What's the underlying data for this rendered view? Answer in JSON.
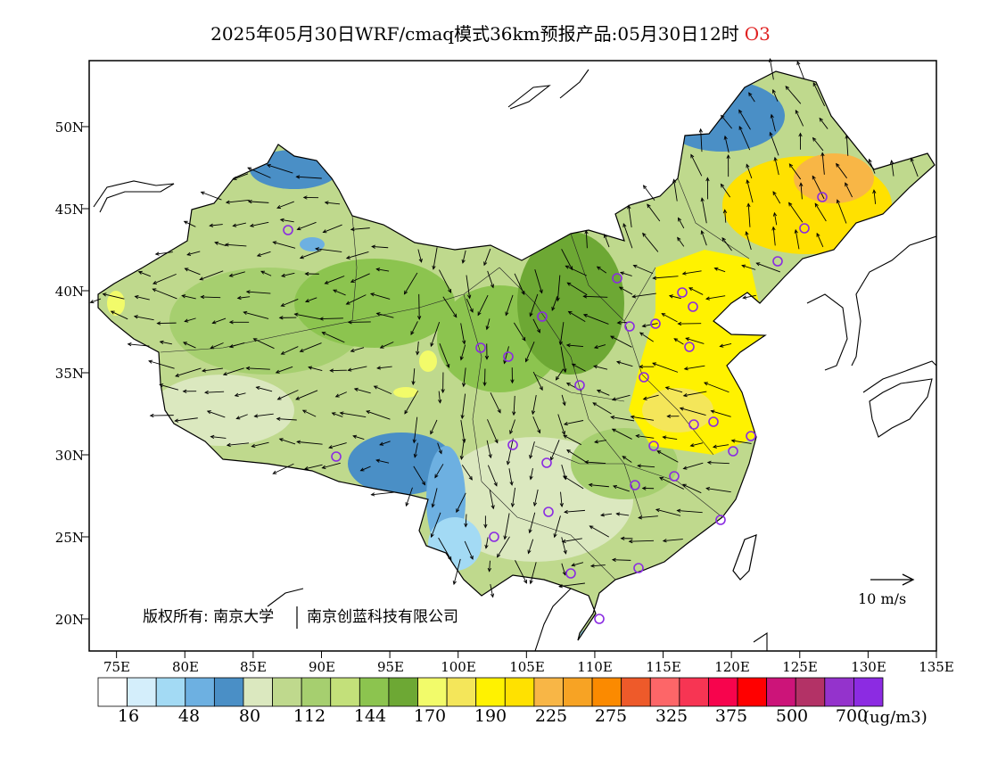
{
  "title": {
    "main": "2025年05月30日WRF/cmaq模式36km预报产品:05月30日12时",
    "pollutant": "O3",
    "pollutant_color": "#e02020"
  },
  "map": {
    "lon_range": [
      73,
      135
    ],
    "lat_range": [
      18,
      54
    ],
    "lon_ticks": [
      "75E",
      "80E",
      "85E",
      "90E",
      "95E",
      "100E",
      "105E",
      "110E",
      "115E",
      "120E",
      "125E",
      "130E",
      "135E"
    ],
    "lat_ticks": [
      "20N",
      "25N",
      "30N",
      "35N",
      "40N",
      "45N",
      "50N"
    ],
    "copyright": "版权所有: 南京大学",
    "company": "南京创蓝科技有限公司",
    "wind_reference": "10 m/s",
    "station_marker_color": "#8a2be2"
  },
  "colorbar": {
    "colors": [
      "#ffffff",
      "#d4eefb",
      "#a3daf4",
      "#6db0e1",
      "#4a8fc6",
      "#dbe8bf",
      "#bfd98d",
      "#a6cf6f",
      "#c3e07a",
      "#8cc44f",
      "#6da834",
      "#f2fb6a",
      "#f4e65a",
      "#fff200",
      "#ffe100",
      "#f8b646",
      "#f7a324",
      "#fb8a00",
      "#ee5a2a",
      "#fd6668",
      "#f73553",
      "#f7044d",
      "#ff0000",
      "#cc1479",
      "#b33266",
      "#9433cc",
      "#8c2be2"
    ],
    "labels": [
      "16",
      "48",
      "80",
      "112",
      "144",
      "170",
      "190",
      "225",
      "275",
      "325",
      "375",
      "500",
      "700"
    ],
    "unit": "(ug/m3)"
  }
}
